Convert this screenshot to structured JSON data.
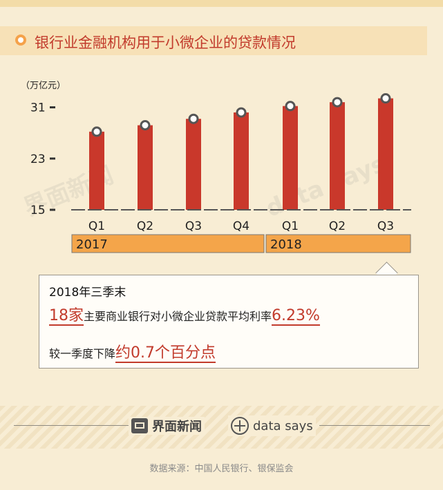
{
  "title": "银行业金融机构用于小微企业的贷款情况",
  "chart_data": {
    "type": "bar",
    "unit": "（万亿元）",
    "categories": [
      "Q1",
      "Q2",
      "Q3",
      "Q4",
      "Q1",
      "Q2",
      "Q3"
    ],
    "values": [
      27.2,
      28.2,
      29.2,
      30.2,
      31.2,
      31.8,
      32.4
    ],
    "years": [
      {
        "label": "2017",
        "span": 4
      },
      {
        "label": "2018",
        "span": 3
      }
    ],
    "yticks": [
      15,
      23,
      31
    ],
    "ylim": [
      15,
      35
    ],
    "colors": {
      "bar": "#c9382b",
      "year_band": "#f4a54a",
      "marker": "#555555"
    }
  },
  "callout": {
    "heading": "2018年三季末",
    "line2_highlight": "18家",
    "line2_text": "主要商业银行对小微企业贷款平均利率",
    "line2_value": "6.23%",
    "line3_text": "较一季度下降",
    "line3_highlight": "约0.7个百分点"
  },
  "footer": {
    "logo_jiemian": "界面新闻",
    "logo_datasays": "data says",
    "source": "数据来源：中国人民银行、银保监会"
  },
  "watermark": {
    "jiemian": "界面新闻",
    "datasays": "data says"
  }
}
